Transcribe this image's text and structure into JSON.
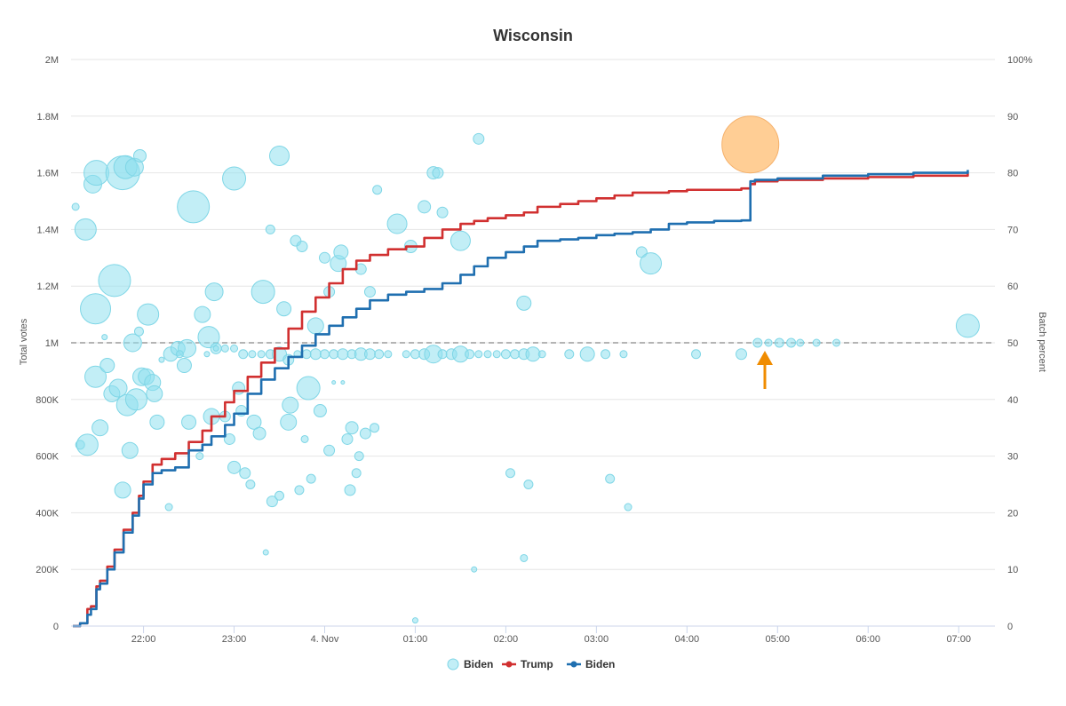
{
  "chart_data": {
    "type": "line+bubble",
    "title": "Wisconsin",
    "left_axis": {
      "title": "Total votes",
      "min": 0,
      "max": 2000000,
      "ticks": [
        0,
        200000,
        400000,
        600000,
        800000,
        1000000,
        1200000,
        1400000,
        1600000,
        1800000,
        2000000
      ],
      "tick_labels": [
        "0",
        "200K",
        "400K",
        "600K",
        "800K",
        "1M",
        "1.2M",
        "1.4M",
        "1.6M",
        "1.8M",
        "2M"
      ]
    },
    "right_axis": {
      "title": "Batch percent",
      "min": 0,
      "max": 100,
      "ticks": [
        0,
        10,
        20,
        30,
        40,
        50,
        60,
        70,
        80,
        90,
        100
      ],
      "tick_labels": [
        "0",
        "10",
        "20",
        "30",
        "40",
        "50",
        "60",
        "70",
        "80",
        "90",
        "100%"
      ]
    },
    "x_axis": {
      "min": 21.2,
      "max": 31.4,
      "ticks": [
        22,
        23,
        24,
        25,
        26,
        27,
        28,
        29,
        30,
        31
      ],
      "tick_labels": [
        "22:00",
        "23:00",
        "4. Nov",
        "01:00",
        "02:00",
        "03:00",
        "04:00",
        "05:00",
        "06:00",
        "07:00"
      ]
    },
    "reference_line": {
      "value": 50,
      "axis": "right",
      "style": "dashed"
    },
    "series": [
      {
        "name": "Trump",
        "type": "line",
        "color": "#d13030",
        "x": [
          21.22,
          21.3,
          21.38,
          21.42,
          21.48,
          21.52,
          21.6,
          21.68,
          21.78,
          21.88,
          21.95,
          22.0,
          22.1,
          22.2,
          22.35,
          22.5,
          22.65,
          22.75,
          22.9,
          23.0,
          23.15,
          23.3,
          23.45,
          23.6,
          23.75,
          23.9,
          24.05,
          24.2,
          24.35,
          24.5,
          24.7,
          24.9,
          25.1,
          25.3,
          25.5,
          25.65,
          25.8,
          26.0,
          26.2,
          26.35,
          26.6,
          26.8,
          27.0,
          27.2,
          27.4,
          27.6,
          27.8,
          28.0,
          28.3,
          28.6,
          28.7,
          28.75,
          29.0,
          29.5,
          30.0,
          30.5,
          31.1
        ],
        "y": [
          0,
          10000,
          60000,
          70000,
          140000,
          160000,
          210000,
          270000,
          340000,
          400000,
          460000,
          510000,
          570000,
          590000,
          610000,
          650000,
          690000,
          740000,
          790000,
          830000,
          880000,
          930000,
          980000,
          1050000,
          1110000,
          1160000,
          1210000,
          1260000,
          1290000,
          1310000,
          1330000,
          1340000,
          1370000,
          1400000,
          1420000,
          1430000,
          1440000,
          1450000,
          1460000,
          1480000,
          1490000,
          1500000,
          1510000,
          1520000,
          1530000,
          1530000,
          1535000,
          1540000,
          1540000,
          1545000,
          1560000,
          1570000,
          1575000,
          1580000,
          1585000,
          1590000,
          1600000
        ]
      },
      {
        "name": "Biden",
        "type": "line",
        "color": "#1f6fb0",
        "x": [
          21.22,
          21.3,
          21.38,
          21.42,
          21.48,
          21.52,
          21.6,
          21.68,
          21.78,
          21.88,
          21.95,
          22.0,
          22.1,
          22.2,
          22.35,
          22.5,
          22.65,
          22.75,
          22.9,
          23.0,
          23.15,
          23.3,
          23.45,
          23.6,
          23.75,
          23.9,
          24.05,
          24.2,
          24.35,
          24.5,
          24.7,
          24.9,
          25.1,
          25.3,
          25.5,
          25.65,
          25.8,
          26.0,
          26.2,
          26.35,
          26.6,
          26.8,
          27.0,
          27.2,
          27.4,
          27.6,
          27.8,
          28.0,
          28.3,
          28.6,
          28.7,
          28.75,
          29.0,
          29.5,
          30.0,
          30.5,
          31.1
        ],
        "y": [
          0,
          10000,
          40000,
          60000,
          130000,
          150000,
          200000,
          260000,
          330000,
          390000,
          450000,
          500000,
          540000,
          550000,
          560000,
          620000,
          640000,
          670000,
          710000,
          750000,
          820000,
          870000,
          910000,
          950000,
          990000,
          1030000,
          1060000,
          1090000,
          1120000,
          1150000,
          1170000,
          1180000,
          1190000,
          1210000,
          1240000,
          1270000,
          1300000,
          1320000,
          1340000,
          1360000,
          1365000,
          1370000,
          1380000,
          1385000,
          1390000,
          1400000,
          1420000,
          1425000,
          1430000,
          1432000,
          1570000,
          1575000,
          1580000,
          1590000,
          1595000,
          1600000,
          1610000
        ]
      },
      {
        "name": "Biden",
        "type": "bubble",
        "axis": "right",
        "color": "#8fe0ee",
        "points": [
          [
            21.25,
            74,
            4
          ],
          [
            21.3,
            32,
            5
          ],
          [
            21.36,
            70,
            12
          ],
          [
            21.38,
            32,
            12
          ],
          [
            21.44,
            78,
            10
          ],
          [
            21.47,
            44,
            12
          ],
          [
            21.47,
            56,
            17
          ],
          [
            21.48,
            80,
            14
          ],
          [
            21.52,
            35,
            9
          ],
          [
            21.57,
            51,
            3
          ],
          [
            21.6,
            46,
            8
          ],
          [
            21.65,
            41,
            9
          ],
          [
            21.68,
            61,
            18
          ],
          [
            21.72,
            42,
            10
          ],
          [
            21.77,
            80,
            19
          ],
          [
            21.77,
            24,
            9
          ],
          [
            21.8,
            81,
            13
          ],
          [
            21.82,
            39,
            12
          ],
          [
            21.85,
            31,
            9
          ],
          [
            21.88,
            50,
            10
          ],
          [
            21.9,
            81,
            10
          ],
          [
            21.92,
            40,
            12
          ],
          [
            21.95,
            52,
            5
          ],
          [
            21.96,
            83,
            7
          ],
          [
            21.98,
            44,
            10
          ],
          [
            22.03,
            44,
            9
          ],
          [
            22.05,
            55,
            12
          ],
          [
            22.1,
            43,
            9
          ],
          [
            22.12,
            41,
            9
          ],
          [
            22.15,
            36,
            8
          ],
          [
            22.2,
            47,
            3
          ],
          [
            22.28,
            21,
            4
          ],
          [
            22.3,
            48,
            8
          ],
          [
            22.38,
            49,
            8
          ],
          [
            22.45,
            46,
            8
          ],
          [
            22.48,
            49,
            10
          ],
          [
            22.55,
            74,
            18
          ],
          [
            22.5,
            36,
            8
          ],
          [
            22.62,
            30,
            4
          ],
          [
            22.65,
            55,
            9
          ],
          [
            22.72,
            51,
            12
          ],
          [
            22.75,
            37,
            9
          ],
          [
            22.78,
            59,
            10
          ],
          [
            22.8,
            49,
            6
          ],
          [
            22.9,
            37,
            6
          ],
          [
            22.95,
            33,
            6
          ],
          [
            23.0,
            79,
            13
          ],
          [
            23.0,
            28,
            7
          ],
          [
            23.05,
            42,
            7
          ],
          [
            23.08,
            38,
            6
          ],
          [
            23.12,
            27,
            6
          ],
          [
            23.18,
            25,
            5
          ],
          [
            23.22,
            36,
            8
          ],
          [
            23.28,
            34,
            7
          ],
          [
            23.32,
            59,
            13
          ],
          [
            23.35,
            13,
            3
          ],
          [
            23.4,
            70,
            5
          ],
          [
            23.42,
            22,
            6
          ],
          [
            23.5,
            23,
            5
          ],
          [
            23.5,
            83,
            11
          ],
          [
            23.55,
            56,
            8
          ],
          [
            23.6,
            36,
            9
          ],
          [
            23.62,
            39,
            9
          ],
          [
            23.68,
            68,
            6
          ],
          [
            23.72,
            24,
            5
          ],
          [
            23.75,
            67,
            6
          ],
          [
            23.78,
            33,
            4
          ],
          [
            23.82,
            42,
            13
          ],
          [
            23.85,
            26,
            5
          ],
          [
            23.9,
            53,
            9
          ],
          [
            23.95,
            38,
            7
          ],
          [
            24.0,
            65,
            6
          ],
          [
            24.05,
            59,
            6
          ],
          [
            24.05,
            31,
            6
          ],
          [
            24.1,
            43,
            2
          ],
          [
            24.15,
            64,
            9
          ],
          [
            24.18,
            66,
            8
          ],
          [
            24.2,
            43,
            2
          ],
          [
            24.25,
            33,
            6
          ],
          [
            24.28,
            24,
            6
          ],
          [
            24.3,
            35,
            7
          ],
          [
            24.35,
            27,
            5
          ],
          [
            24.38,
            30,
            5
          ],
          [
            24.4,
            63,
            6
          ],
          [
            24.45,
            34,
            6
          ],
          [
            24.5,
            59,
            6
          ],
          [
            24.55,
            35,
            5
          ],
          [
            24.58,
            77,
            5
          ],
          [
            24.8,
            71,
            11
          ],
          [
            24.95,
            67,
            7
          ],
          [
            25.0,
            1,
            3
          ],
          [
            25.1,
            74,
            7
          ],
          [
            25.2,
            80,
            7
          ],
          [
            25.25,
            80,
            6
          ],
          [
            25.3,
            73,
            6
          ],
          [
            25.5,
            68,
            11
          ],
          [
            25.65,
            10,
            3
          ],
          [
            25.7,
            86,
            6
          ],
          [
            26.05,
            27,
            5
          ],
          [
            26.2,
            12,
            4
          ],
          [
            26.2,
            57,
            8
          ],
          [
            26.25,
            25,
            5
          ],
          [
            27.15,
            26,
            5
          ],
          [
            27.35,
            21,
            4
          ],
          [
            27.5,
            66,
            6
          ],
          [
            27.6,
            64,
            12
          ],
          [
            28.7,
            85,
            32
          ],
          [
            31.1,
            53,
            13
          ]
        ],
        "batch_points": [
          [
            22.4,
            48,
            4
          ],
          [
            22.7,
            48,
            3
          ],
          [
            22.8,
            49,
            3
          ],
          [
            22.9,
            49,
            4
          ],
          [
            23.0,
            49,
            4
          ],
          [
            23.1,
            48,
            5
          ],
          [
            23.2,
            48,
            4
          ],
          [
            23.3,
            48,
            4
          ],
          [
            23.4,
            48,
            5
          ],
          [
            23.5,
            48,
            8
          ],
          [
            23.6,
            47,
            6
          ],
          [
            23.7,
            48,
            4
          ],
          [
            23.8,
            48,
            5
          ],
          [
            23.9,
            48,
            6
          ],
          [
            24.0,
            48,
            5
          ],
          [
            24.1,
            48,
            5
          ],
          [
            24.2,
            48,
            6
          ],
          [
            24.3,
            48,
            5
          ],
          [
            24.4,
            48,
            7
          ],
          [
            24.5,
            48,
            6
          ],
          [
            24.6,
            48,
            5
          ],
          [
            24.7,
            48,
            4
          ],
          [
            24.9,
            48,
            4
          ],
          [
            25.0,
            48,
            5
          ],
          [
            25.1,
            48,
            6
          ],
          [
            25.2,
            48,
            10
          ],
          [
            25.3,
            48,
            5
          ],
          [
            25.4,
            48,
            6
          ],
          [
            25.5,
            48,
            9
          ],
          [
            25.6,
            48,
            5
          ],
          [
            25.7,
            48,
            4
          ],
          [
            25.8,
            48,
            4
          ],
          [
            25.9,
            48,
            4
          ],
          [
            26.0,
            48,
            5
          ],
          [
            26.1,
            48,
            5
          ],
          [
            26.2,
            48,
            6
          ],
          [
            26.3,
            48,
            8
          ],
          [
            26.4,
            48,
            4
          ],
          [
            26.7,
            48,
            5
          ],
          [
            26.9,
            48,
            8
          ],
          [
            27.1,
            48,
            5
          ],
          [
            27.3,
            48,
            4
          ],
          [
            28.1,
            48,
            5
          ],
          [
            28.6,
            48,
            6
          ],
          [
            28.78,
            50,
            5
          ],
          [
            28.9,
            50,
            4
          ],
          [
            29.02,
            50,
            5
          ],
          [
            29.15,
            50,
            5
          ],
          [
            29.25,
            50,
            4
          ],
          [
            29.43,
            50,
            4
          ],
          [
            29.65,
            50,
            4
          ]
        ]
      }
    ],
    "legend": [
      "Biden",
      "Trump",
      "Biden"
    ],
    "legend_placement": "bottom-center"
  }
}
